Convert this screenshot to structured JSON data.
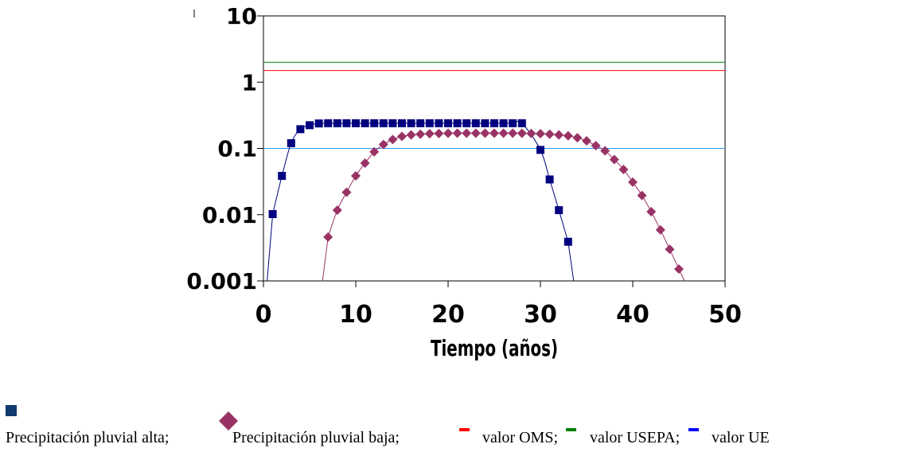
{
  "chart_data": {
    "type": "scatter",
    "title": "",
    "xlabel": "Tiempo (años)",
    "ylabel": "",
    "xlim": [
      0,
      50
    ],
    "ylim": [
      0.001,
      10
    ],
    "yscale": "log",
    "x_ticks": [
      0,
      10,
      20,
      30,
      40,
      50
    ],
    "x_tick_labels": [
      "0",
      "10",
      "20",
      "30",
      "40",
      "50"
    ],
    "y_ticks": [
      0.001,
      0.01,
      0.1,
      1,
      10
    ],
    "y_tick_labels": [
      "0.001",
      "0.01",
      "0.1",
      "1",
      "10"
    ],
    "grid": false,
    "legend_position": "bottom",
    "series": [
      {
        "name": "Precipitación pluvial alta",
        "color": "#00007f",
        "marker": "square",
        "points": [
          [
            1,
            0.0102
          ],
          [
            2,
            0.0385
          ],
          [
            3,
            0.12
          ],
          [
            4,
            0.195
          ],
          [
            5,
            0.224
          ],
          [
            6,
            0.238
          ],
          [
            7,
            0.24
          ],
          [
            8,
            0.24
          ],
          [
            9,
            0.24
          ],
          [
            10,
            0.24
          ],
          [
            11,
            0.24
          ],
          [
            12,
            0.24
          ],
          [
            13,
            0.24
          ],
          [
            14,
            0.24
          ],
          [
            15,
            0.24
          ],
          [
            16,
            0.24
          ],
          [
            17,
            0.24
          ],
          [
            18,
            0.24
          ],
          [
            19,
            0.24
          ],
          [
            20,
            0.24
          ],
          [
            21,
            0.24
          ],
          [
            22,
            0.24
          ],
          [
            23,
            0.24
          ],
          [
            24,
            0.24
          ],
          [
            25,
            0.24
          ],
          [
            26,
            0.24
          ],
          [
            27,
            0.24
          ],
          [
            28,
            0.24
          ],
          [
            30,
            0.095
          ],
          [
            31,
            0.034
          ],
          [
            32,
            0.0117
          ],
          [
            33,
            0.0039
          ]
        ]
      },
      {
        "name": "Precipitación pluvial baja",
        "color": "#993366",
        "marker": "diamond",
        "points": [
          [
            7,
            0.0046
          ],
          [
            8,
            0.0117
          ],
          [
            9,
            0.0218
          ],
          [
            10,
            0.0385
          ],
          [
            11,
            0.06
          ],
          [
            12,
            0.089
          ],
          [
            13,
            0.115
          ],
          [
            14,
            0.136
          ],
          [
            15,
            0.152
          ],
          [
            16,
            0.16
          ],
          [
            17,
            0.164
          ],
          [
            18,
            0.167
          ],
          [
            19,
            0.168
          ],
          [
            20,
            0.169
          ],
          [
            21,
            0.17
          ],
          [
            22,
            0.17
          ],
          [
            23,
            0.17
          ],
          [
            24,
            0.17
          ],
          [
            25,
            0.17
          ],
          [
            26,
            0.17
          ],
          [
            27,
            0.17
          ],
          [
            28,
            0.169
          ],
          [
            29,
            0.168
          ],
          [
            30,
            0.167
          ],
          [
            31,
            0.164
          ],
          [
            32,
            0.16
          ],
          [
            33,
            0.155
          ],
          [
            34,
            0.145
          ],
          [
            35,
            0.13
          ],
          [
            36,
            0.11
          ],
          [
            37,
            0.092
          ],
          [
            38,
            0.068
          ],
          [
            39,
            0.048
          ],
          [
            40,
            0.031
          ],
          [
            41,
            0.0195
          ],
          [
            42,
            0.0111
          ],
          [
            43,
            0.0059
          ],
          [
            44,
            0.003
          ],
          [
            45,
            0.00151
          ]
        ]
      }
    ],
    "reference_lines": [
      {
        "name": "valor OMS",
        "y": 1.5,
        "color": "#ff0000"
      },
      {
        "name": "valor USEPA",
        "y": 2.0,
        "color": "#008000"
      },
      {
        "name": "valor UE",
        "y": 0.1,
        "color": "#3399ff"
      }
    ]
  },
  "legend": {
    "items": [
      {
        "label": "Precipitación pluvial alta;",
        "symbol": "square",
        "color": "#00007f"
      },
      {
        "label": "Precipitación pluvial baja;",
        "symbol": "diamond",
        "color": "#993366"
      },
      {
        "label": "valor OMS;",
        "symbol": "dash",
        "color": "#ff0000"
      },
      {
        "label": "valor USEPA;",
        "symbol": "dash",
        "color": "#008000"
      },
      {
        "label": "valor UE",
        "symbol": "dash",
        "color": "#0000ff"
      }
    ]
  }
}
